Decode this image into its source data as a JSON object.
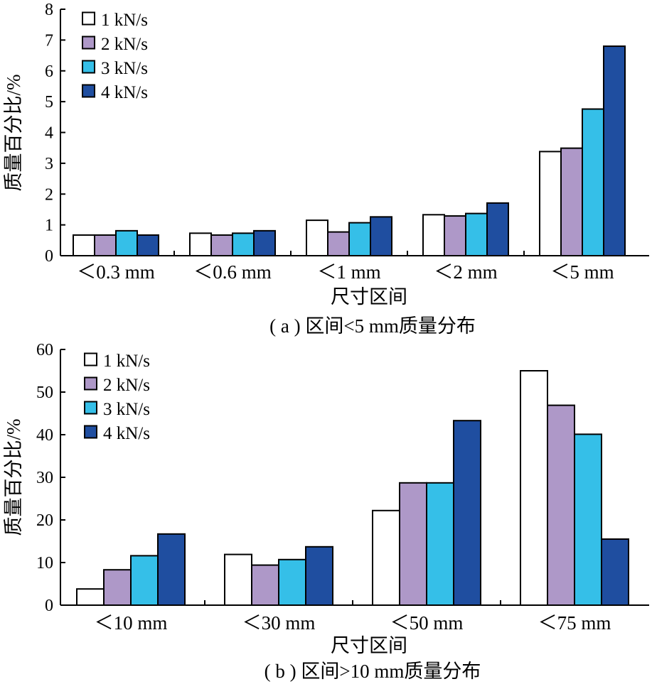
{
  "series_colors": [
    "#ffffff",
    "#ae98c8",
    "#35bfe8",
    "#1f4ea0"
  ],
  "chart_data": [
    {
      "type": "bar",
      "caption": "( a ) 区间<5 mm质量分布",
      "xlabel": "尺寸区间",
      "ylabel": "质量百分比/%",
      "ylim": [
        0,
        8
      ],
      "yticks": [
        "0",
        "1",
        "2",
        "3",
        "4",
        "5",
        "6",
        "7",
        "8"
      ],
      "categories": [
        "＜0.3 mm",
        "＜0.6 mm",
        "＜1 mm",
        "＜2 mm",
        "＜5 mm"
      ],
      "legend_position": "top-left",
      "series": [
        {
          "name": "1 kN/s",
          "values": [
            0.67,
            0.73,
            1.15,
            1.33,
            3.38
          ]
        },
        {
          "name": "2 kN/s",
          "values": [
            0.67,
            0.67,
            0.77,
            1.29,
            3.49
          ]
        },
        {
          "name": "3 kN/s",
          "values": [
            0.81,
            0.73,
            1.07,
            1.37,
            4.76
          ]
        },
        {
          "name": "4 kN/s",
          "values": [
            0.67,
            0.81,
            1.26,
            1.71,
            6.8
          ]
        }
      ]
    },
    {
      "type": "bar",
      "caption": "( b ) 区间>10 mm质量分布",
      "xlabel": "尺寸区间",
      "ylabel": "质量百分比/%",
      "ylim": [
        0,
        60
      ],
      "yticks": [
        "0",
        "10",
        "20",
        "30",
        "40",
        "50",
        "60"
      ],
      "categories": [
        "＜10 mm",
        "＜30 mm",
        "＜50 mm",
        "＜75 mm"
      ],
      "legend_position": "top-left",
      "series": [
        {
          "name": "1 kN/s",
          "values": [
            3.8,
            11.9,
            22.2,
            55.0
          ]
        },
        {
          "name": "2 kN/s",
          "values": [
            8.3,
            9.4,
            28.7,
            46.9
          ]
        },
        {
          "name": "3 kN/s",
          "values": [
            11.6,
            10.7,
            28.7,
            40.1
          ]
        },
        {
          "name": "4 kN/s",
          "values": [
            16.7,
            13.7,
            43.3,
            15.5
          ]
        }
      ]
    }
  ]
}
